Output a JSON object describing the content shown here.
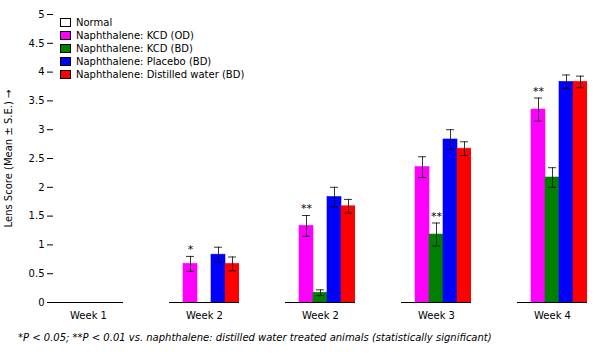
{
  "chart_data": {
    "type": "bar",
    "categories": [
      "Week 1",
      "Week 2",
      "Week 2",
      "Week 3",
      "Week 4"
    ],
    "series": [
      {
        "name": "Normal",
        "color": "white",
        "values": [
          0.0,
          0.0,
          0.0,
          0.0,
          0.0
        ],
        "errors": [
          0.0,
          0.0,
          0.0,
          0.0,
          0.0
        ]
      },
      {
        "name": "Naphthalene: KCD (OD)",
        "color": "#FF00FF",
        "values": [
          0.0,
          0.67,
          1.33,
          2.35,
          3.35
        ],
        "errors": [
          0.0,
          0.13,
          0.18,
          0.18,
          0.2
        ]
      },
      {
        "name": "Naphthalene: KCD (BD)",
        "color": "#008000",
        "values": [
          0.0,
          0.0,
          0.17,
          1.18,
          2.17
        ],
        "errors": [
          0.0,
          0.0,
          0.05,
          0.2,
          0.17
        ]
      },
      {
        "name": "Naphthalene: Placebo (BD)",
        "color": "#0000FF",
        "values": [
          0.0,
          0.83,
          1.83,
          2.83,
          3.83
        ],
        "errors": [
          0.0,
          0.13,
          0.17,
          0.17,
          0.12
        ]
      },
      {
        "name": "Naphthalene: Distilled water (BD)",
        "color": "#FF0000",
        "values": [
          0.0,
          0.67,
          1.67,
          2.67,
          3.83
        ],
        "errors": [
          0.0,
          0.12,
          0.12,
          0.12,
          0.1
        ]
      }
    ],
    "annotations": [
      {
        "category": 1,
        "series": "Naphthalene: KCD (OD)",
        "text": "*"
      },
      {
        "category": 2,
        "series": "Naphthalene: KCD (OD)",
        "text": "**"
      },
      {
        "category": 3,
        "series": "Naphthalene: KCD (BD)",
        "text": "**"
      },
      {
        "category": 4,
        "series": "Naphthalene: KCD (OD)",
        "text": "**"
      }
    ],
    "ylabel": "Lens Score (Mean ± S.E.)",
    "ylim": [
      0,
      5
    ],
    "yticks": [
      0,
      0.5,
      1,
      1.5,
      2,
      2.5,
      3,
      3.5,
      4,
      4.5,
      5
    ],
    "footnote": "*P < 0.05; **P < 0.01 vs. naphthalene: distilled water treated animals (statistically significant)",
    "grid": false,
    "legend": "upper left"
  }
}
